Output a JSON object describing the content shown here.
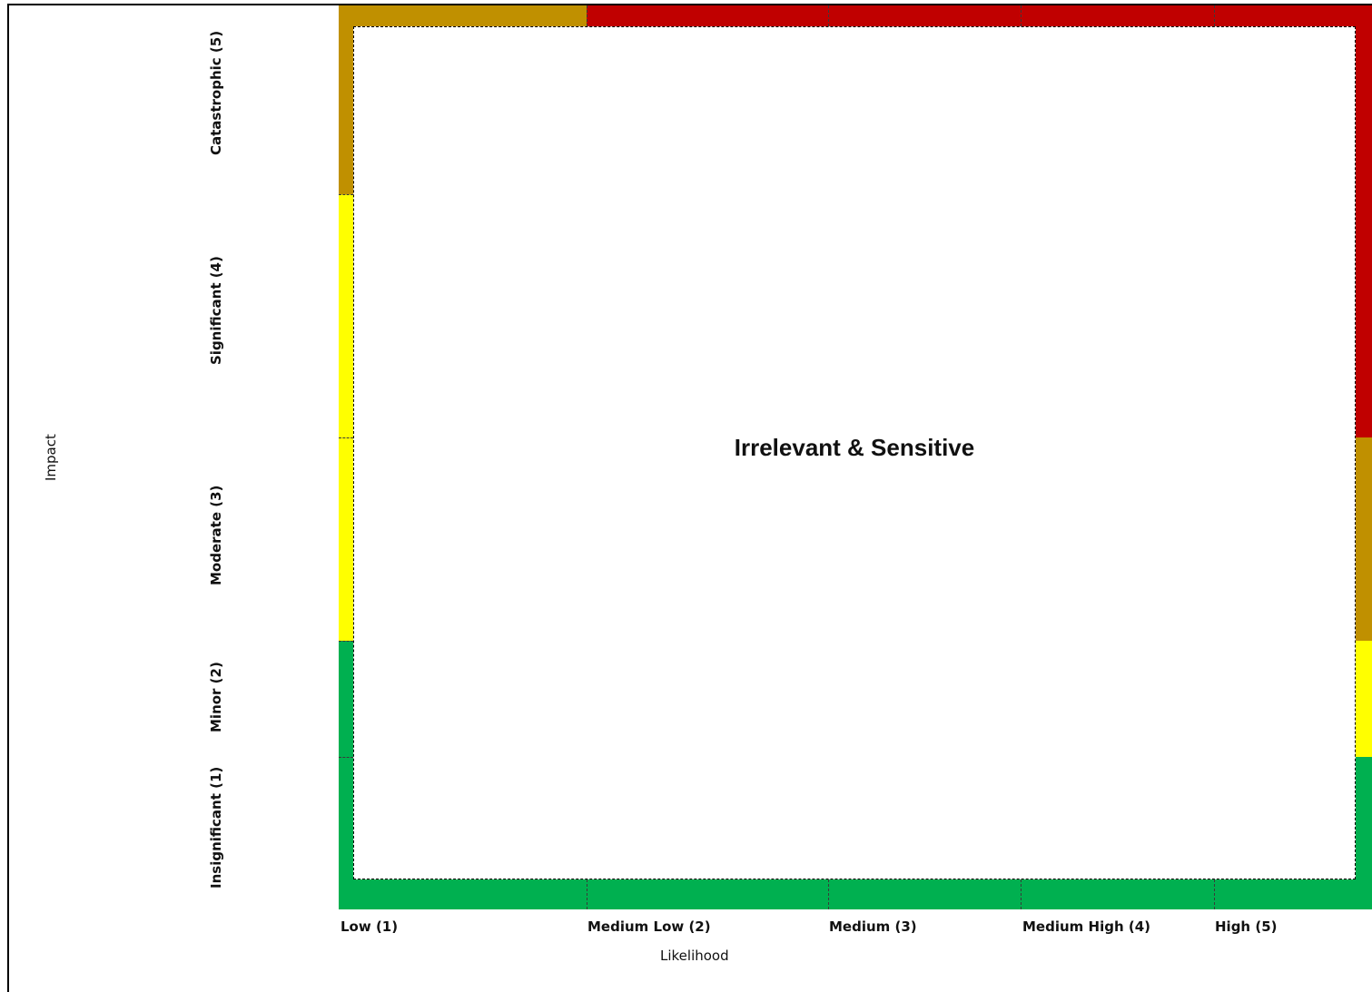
{
  "diagram": {
    "center_label": "Irrelevant & Sensitive",
    "x_axis": {
      "title": "Likelihood",
      "ticks": [
        "Low (1)",
        "Medium Low (2)",
        "Medium (3)",
        "Medium High (4)",
        "High (5)"
      ]
    },
    "y_axis": {
      "title": "Impact",
      "ticks": [
        "Catastrophic (5)",
        "Significant (4)",
        "Moderate (3)",
        "Minor (2)",
        "Insignificant (1)"
      ]
    },
    "colors": {
      "green": "#00b050",
      "yellow": "#ffff00",
      "amber": "#c09000",
      "red": "#c00000"
    }
  }
}
